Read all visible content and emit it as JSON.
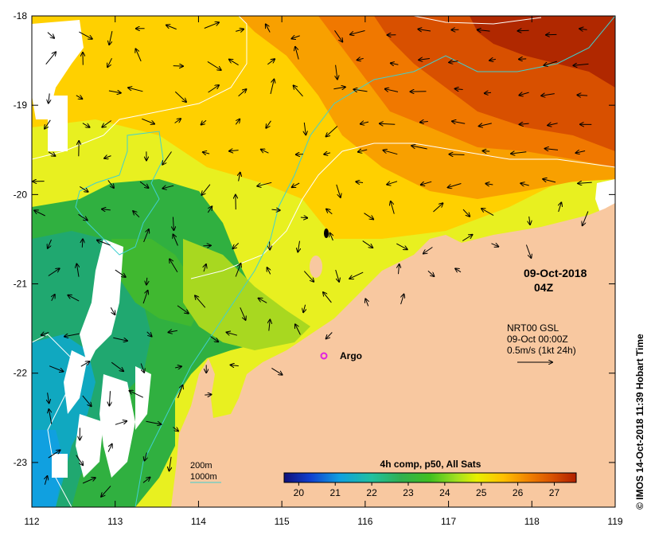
{
  "map": {
    "lon_ticks": [
      "112",
      "113",
      "114",
      "115",
      "116",
      "117",
      "118",
      "119"
    ],
    "lat_ticks": [
      "-18",
      "-19",
      "-20",
      "-21",
      "-22",
      "-23"
    ],
    "lon_range": [
      112,
      119
    ],
    "lat_range": [
      -18,
      -23.5
    ]
  },
  "date_label": {
    "date": "09-Oct-2018",
    "time": "04Z"
  },
  "current_legend": {
    "line1": "NRT00 GSL",
    "line2": "09-Oct 00:00Z",
    "line3": "0.5m/s (1kt 24h)"
  },
  "argo": {
    "label": "Argo",
    "lon": 115.5,
    "lat": -21.85,
    "color": "#e020e0"
  },
  "depth_legend": {
    "items": [
      {
        "label": "200m",
        "color": "#ffffff"
      },
      {
        "label": "1000m",
        "color": "#40d0d0"
      }
    ]
  },
  "colorbar": {
    "title": "4h comp, p50, All Sats",
    "ticks": [
      "20",
      "21",
      "22",
      "23",
      "24",
      "25",
      "26",
      "27"
    ],
    "min": 19.6,
    "max": 27.6,
    "colors": [
      "#10107a",
      "#1040d0",
      "#10a0e0",
      "#20c0a0",
      "#30b050",
      "#40c020",
      "#a0e020",
      "#e8f000",
      "#ffc000",
      "#f08000",
      "#d85000",
      "#b02000"
    ]
  },
  "credit": "© IMOS 14-Oct-2018 11:39 Hobart Time",
  "colors": {
    "land": "#f8c8a0",
    "cloud": "#ffffff",
    "contour_200m": "#ffffff",
    "contour_1000m": "#40d0d0"
  }
}
